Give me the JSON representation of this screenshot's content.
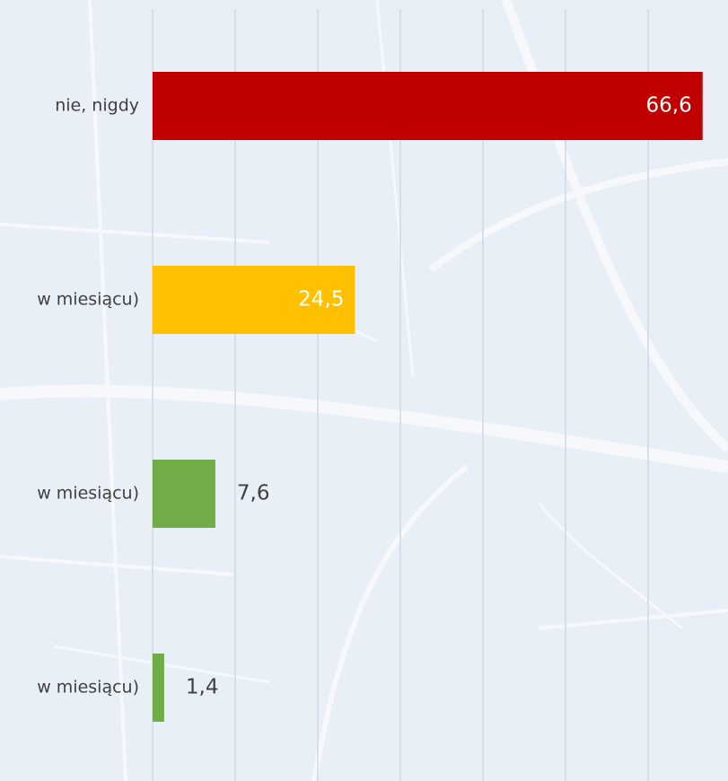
{
  "chart_data": {
    "type": "barh",
    "categories": [
      "nie, nigdy",
      "w miesiącu)",
      "w miesiącu)",
      "w miesiącu)"
    ],
    "values": [
      66.6,
      24.5,
      7.6,
      1.4
    ],
    "value_labels": [
      "66,6",
      "24,5",
      "7,6",
      "1,4"
    ],
    "colors": [
      "#c00000",
      "#ffc000",
      "#70ad47",
      "#70ad47"
    ],
    "xlim": [
      0,
      70
    ],
    "xticks": [
      0,
      10,
      20,
      30,
      40,
      50,
      60
    ],
    "grid": true
  }
}
